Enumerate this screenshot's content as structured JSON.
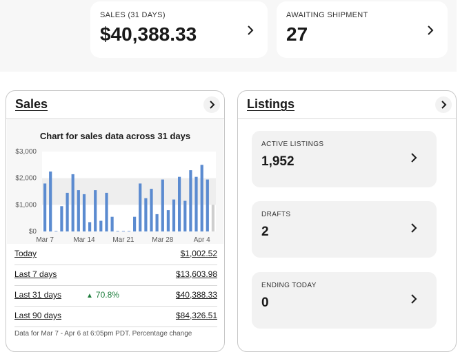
{
  "kpis": [
    {
      "label": "SALES (31 DAYS)",
      "value": "$40,388.33"
    },
    {
      "label": "AWAITING SHIPMENT",
      "value": "27"
    }
  ],
  "sales": {
    "title": "Sales",
    "rows": [
      {
        "label": "Today",
        "value": "$1,002.52"
      },
      {
        "label": "Last 7 days",
        "value": "$13,603.98"
      },
      {
        "label": "Last 31 days",
        "value": "$40,388.33",
        "change": "70.8%"
      },
      {
        "label": "Last 90 days",
        "value": "$84,326.51"
      }
    ],
    "note": "Data for Mar 7 - Apr 6 at 6:05pm PDT. Percentage change"
  },
  "listings": {
    "title": "Listings",
    "tiles": [
      {
        "label": "ACTIVE LISTINGS",
        "value": "1,952"
      },
      {
        "label": "DRAFTS",
        "value": "2"
      },
      {
        "label": "ENDING TODAY",
        "value": "0"
      }
    ]
  },
  "colors": {
    "bar": "#5b8bd0",
    "bar_today": "#cfcfcf",
    "positive": "#1e7d3c"
  },
  "chart_data": {
    "type": "bar",
    "title": "Chart for sales data across 31 days",
    "xlabel": "",
    "ylabel": "",
    "ylim": [
      0,
      3000
    ],
    "yticks": [
      "$0",
      "$1,000",
      "$2,000",
      "$3,000"
    ],
    "ytick_values": [
      0,
      1000,
      2000,
      3000
    ],
    "xtick_labels": [
      "Mar 7",
      "Mar 14",
      "Mar 21",
      "Mar 28",
      "Apr 4"
    ],
    "xtick_index": [
      0,
      7,
      14,
      21,
      28
    ],
    "values": [
      1800,
      2250,
      0,
      950,
      1450,
      2150,
      1550,
      1400,
      350,
      1550,
      400,
      1450,
      550,
      10,
      0,
      0,
      550,
      1800,
      1250,
      1600,
      650,
      1950,
      800,
      1200,
      2050,
      1150,
      2300,
      2050,
      2500,
      1950,
      1000
    ]
  }
}
